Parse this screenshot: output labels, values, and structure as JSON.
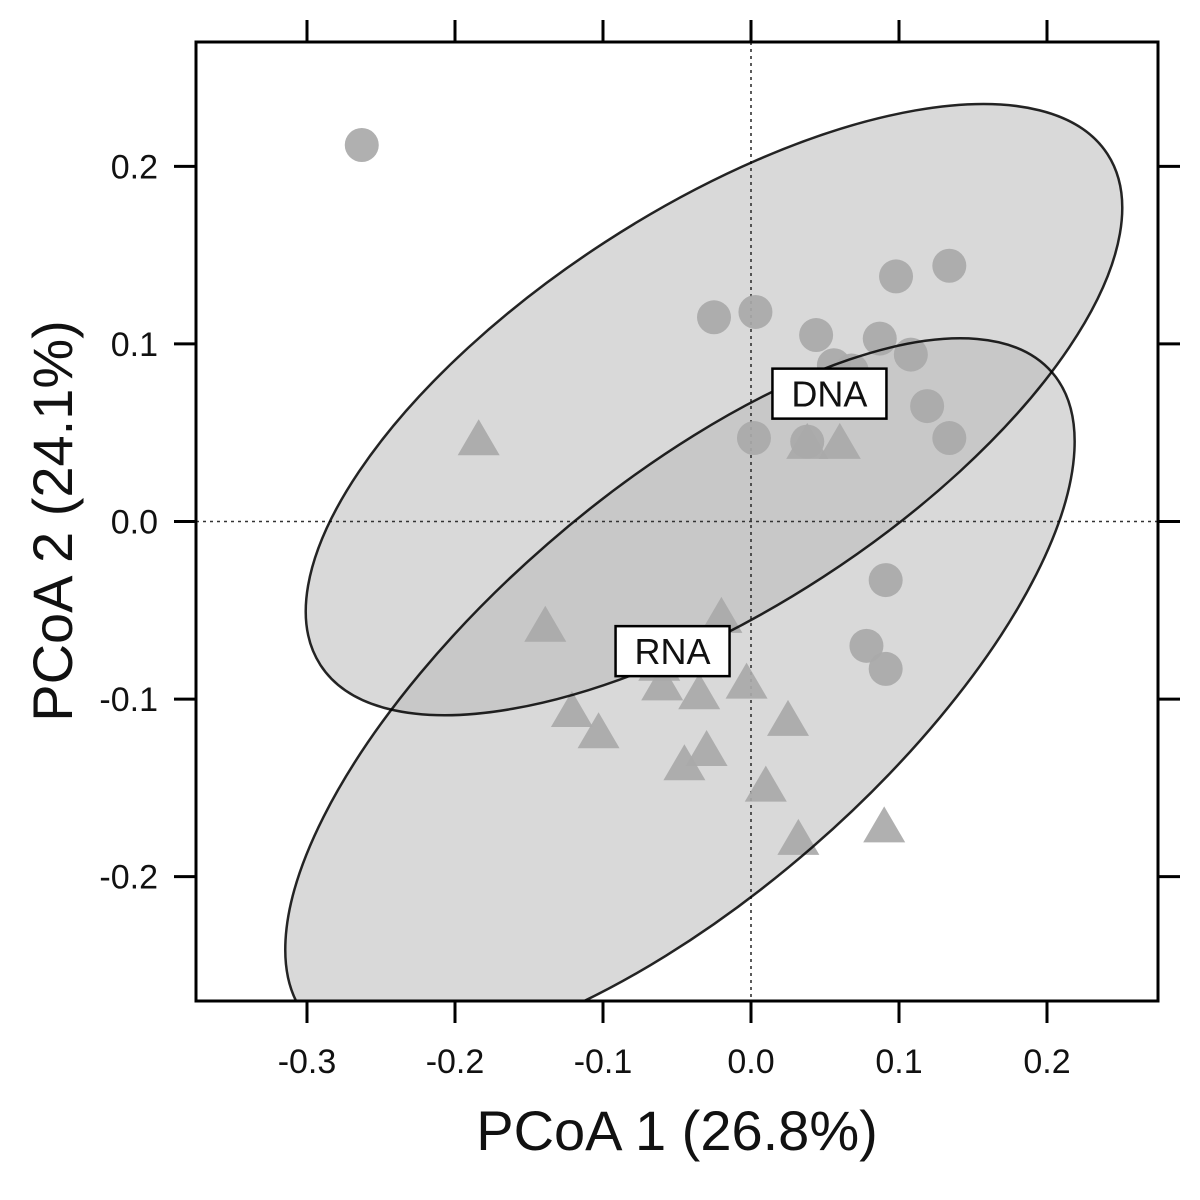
{
  "chart_data": {
    "type": "scatter",
    "title": "",
    "xlabel": "PCoA 1 (26.8%)",
    "ylabel": "PCoA 2 (24.1%)",
    "xlim": [
      -0.375,
      0.275
    ],
    "ylim": [
      -0.27,
      0.27
    ],
    "xticks": [
      -0.3,
      -0.2,
      -0.1,
      0.0,
      0.1,
      0.2
    ],
    "xtick_labels": [
      "-0.3",
      "-0.2",
      "-0.1",
      "0.0",
      "0.1",
      "0.2"
    ],
    "yticks": [
      -0.2,
      -0.1,
      0.0,
      0.1,
      0.2
    ],
    "ytick_labels": [
      "-0.2",
      "-0.1",
      "0.0",
      "0.1",
      "0.2"
    ],
    "reference_lines": {
      "x": 0.0,
      "y": 0.0,
      "style": "dotted"
    },
    "grid": false,
    "legend": "none",
    "colors": {
      "points": "#a9a9a9",
      "ellipse_fill": "#b9b9b9",
      "ellipse_stroke": "#000000"
    },
    "series": [
      {
        "label": "DNA",
        "marker": "circle",
        "label_position": {
          "x": 0.053,
          "y": 0.072
        },
        "ellipse": {
          "center": [
            -0.025,
            0.063
          ],
          "rx": 0.317,
          "ry": 0.135,
          "angle_deg": -33
        },
        "x": [
          -0.263,
          -0.025,
          0.003,
          0.044,
          0.056,
          0.068,
          0.087,
          0.098,
          0.108,
          0.119,
          0.134,
          0.134,
          0.002,
          0.038,
          0.091,
          0.078,
          0.091
        ],
        "y": [
          0.212,
          0.115,
          0.118,
          0.105,
          0.088,
          0.085,
          0.103,
          0.138,
          0.094,
          0.065,
          0.144,
          0.047,
          0.047,
          0.045,
          -0.033,
          -0.07,
          -0.083
        ]
      },
      {
        "label": "RNA",
        "marker": "triangle",
        "label_position": {
          "x": -0.053,
          "y": -0.073
        },
        "ellipse": {
          "center": [
            -0.048,
            -0.098
          ],
          "rx": 0.333,
          "ry": 0.136,
          "angle_deg": -41
        },
        "x": [
          -0.184,
          -0.139,
          -0.121,
          -0.103,
          -0.02,
          -0.062,
          -0.06,
          -0.035,
          -0.03,
          -0.045,
          -0.003,
          0.025,
          0.01,
          0.032,
          0.038,
          0.06,
          0.09
        ],
        "y": [
          0.045,
          -0.06,
          -0.108,
          -0.12,
          -0.055,
          -0.082,
          -0.093,
          -0.098,
          -0.13,
          -0.138,
          -0.092,
          -0.113,
          -0.15,
          -0.18,
          0.043,
          0.043,
          -0.173
        ]
      }
    ]
  }
}
